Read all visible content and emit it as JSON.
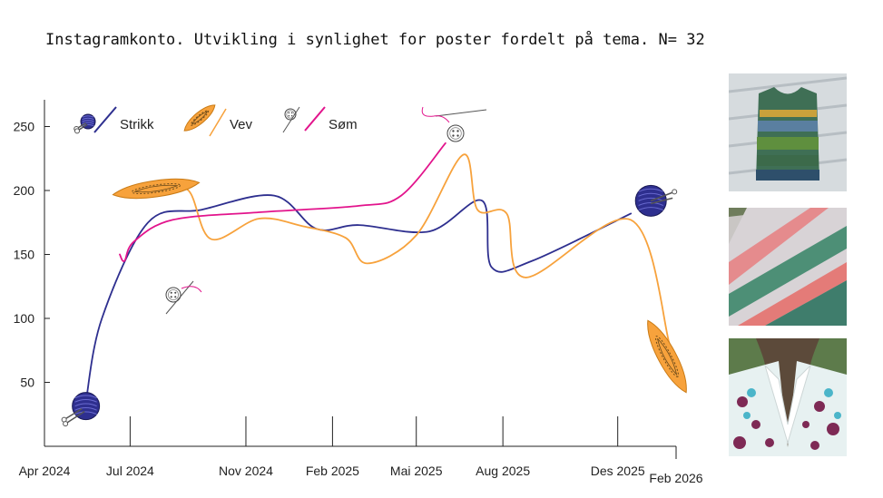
{
  "title": "Instagramkonto. Utvikling i synlighet for poster fordelt på tema. N= 32",
  "chart_data": {
    "type": "line",
    "title": "Instagramkonto. Utvikling i synlighet for poster fordelt på tema. N= 32",
    "xlabel": "",
    "ylabel": "",
    "x_ticks": [
      {
        "label": "Apr 2024",
        "x": "2024-04-01"
      },
      {
        "label": "Jul 2024",
        "x": "2024-07-01"
      },
      {
        "label": "Nov 2024",
        "x": "2024-11-01"
      },
      {
        "label": "Feb 2025",
        "x": "2025-02-01"
      },
      {
        "label": "Mai 2025",
        "x": "2025-05-01"
      },
      {
        "label": "Aug 2025",
        "x": "2025-08-01"
      },
      {
        "label": "Des 2025",
        "x": "2025-12-01"
      },
      {
        "label": "Feb 2026",
        "x": "2026-02-01"
      }
    ],
    "y_ticks": [
      50,
      100,
      150,
      200,
      250
    ],
    "ylim": [
      0,
      275
    ],
    "xlim": [
      "2024-04-01",
      "2026-02-01"
    ],
    "grid": false,
    "legend_position": "top-left",
    "series": [
      {
        "name": "Strikk",
        "color": "#2e2f8f",
        "icon": "yarn-ball-icon",
        "points": [
          [
            "2024-05-15",
            35
          ],
          [
            "2024-06-01",
            100
          ],
          [
            "2024-07-20",
            175
          ],
          [
            "2024-09-15",
            185
          ],
          [
            "2024-12-01",
            196
          ],
          [
            "2025-01-15",
            170
          ],
          [
            "2025-03-01",
            173
          ],
          [
            "2025-05-15",
            168
          ],
          [
            "2025-07-10",
            192
          ],
          [
            "2025-07-20",
            140
          ],
          [
            "2025-09-01",
            145
          ],
          [
            "2025-12-15",
            182
          ]
        ]
      },
      {
        "name": "Vev",
        "color": "#f7a23c",
        "icon": "shuttle-icon",
        "points": [
          [
            "2024-08-01",
            202
          ],
          [
            "2024-09-01",
            200
          ],
          [
            "2024-09-25",
            162
          ],
          [
            "2024-11-15",
            178
          ],
          [
            "2025-01-01",
            172
          ],
          [
            "2025-02-15",
            163
          ],
          [
            "2025-03-10",
            143
          ],
          [
            "2025-05-01",
            165
          ],
          [
            "2025-06-20",
            228
          ],
          [
            "2025-07-05",
            185
          ],
          [
            "2025-08-05",
            182
          ],
          [
            "2025-08-25",
            132
          ],
          [
            "2025-12-15",
            177
          ],
          [
            "2026-01-25",
            80
          ]
        ]
      },
      {
        "name": "Søm",
        "color": "#e2148c",
        "icon": "button-needle-icon",
        "points": [
          [
            "2024-06-20",
            150
          ],
          [
            "2024-06-25",
            145
          ],
          [
            "2024-07-05",
            160
          ],
          [
            "2024-08-15",
            177
          ],
          [
            "2024-11-15",
            183
          ],
          [
            "2025-03-01",
            188
          ],
          [
            "2025-04-15",
            196
          ],
          [
            "2025-06-01",
            237
          ]
        ]
      }
    ]
  },
  "photos": [
    {
      "name": "knitted-vest-photo"
    },
    {
      "name": "woven-rug-photo"
    },
    {
      "name": "sewn-blouse-photo"
    }
  ]
}
